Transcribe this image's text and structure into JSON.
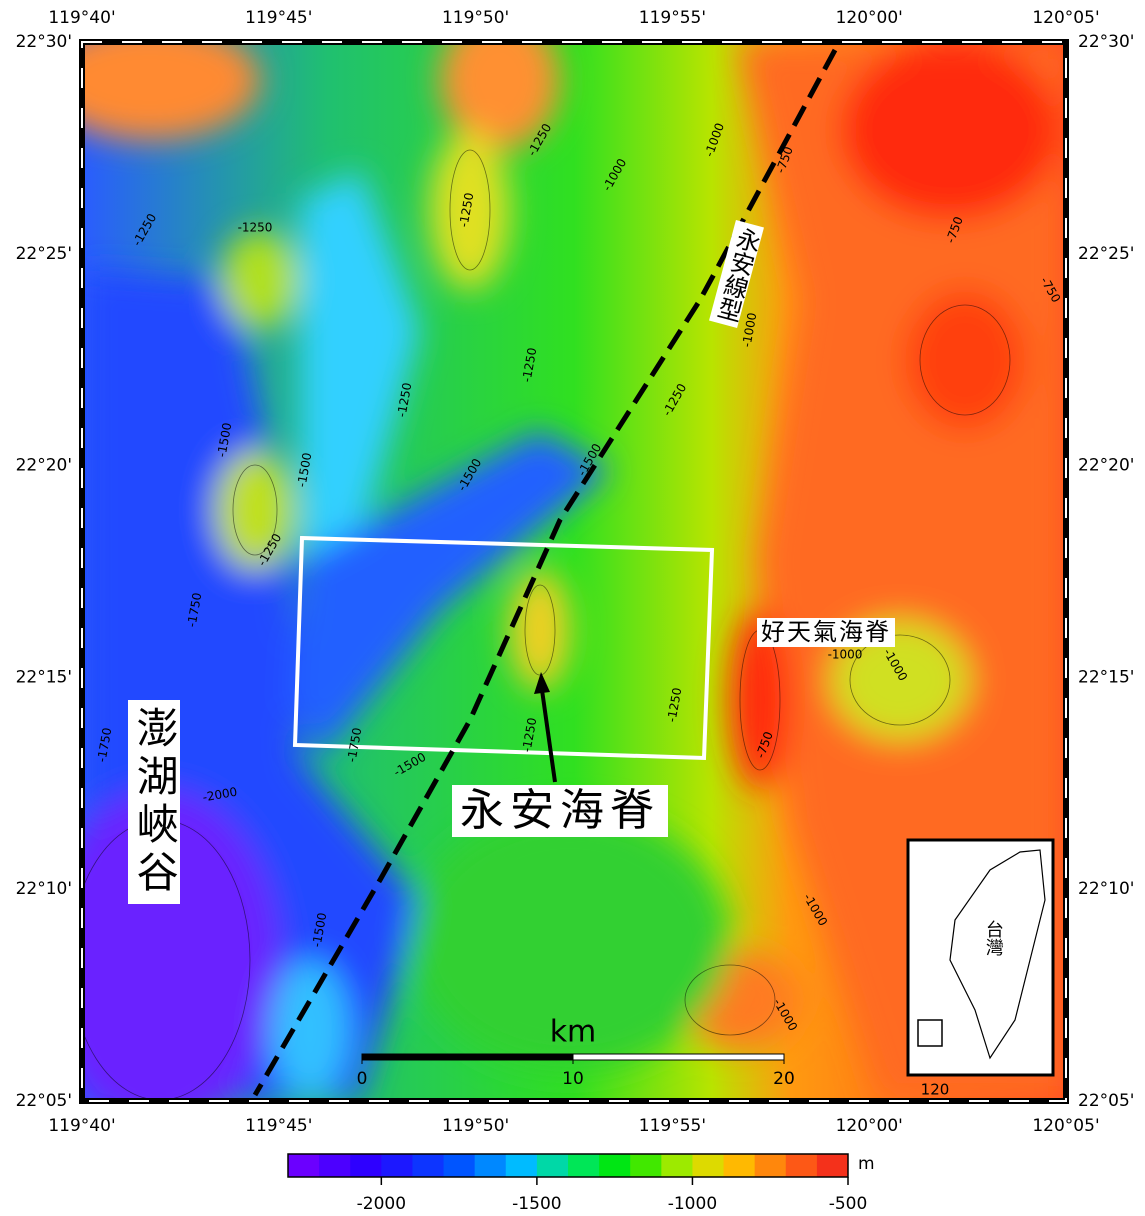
{
  "map": {
    "lon_labels": [
      "119°40'",
      "119°45'",
      "119°50'",
      "119°55'",
      "120°00'",
      "120°05'"
    ],
    "lat_labels": [
      "22°30'",
      "22°25'",
      "22°20'",
      "22°15'",
      "22°10'",
      "22°05'"
    ],
    "annotations": {
      "lineament": "永安線型",
      "ridge_east": "好天氣海脊",
      "ridge": "永安海脊",
      "canyon": "澎湖峽谷"
    },
    "contour_labels": [
      -1250,
      -1250,
      -1250,
      -1000,
      -1250,
      -1000,
      -750,
      -750,
      -750,
      -1000,
      -1250,
      -1250,
      -1250,
      -1500,
      -1500,
      -1500,
      -1500,
      -1250,
      -1750,
      -1000,
      -1000,
      -750,
      -1250,
      -1250,
      -1500,
      -1750,
      -2000,
      -1750,
      -1500,
      -1000,
      -1000
    ],
    "scale_bar": {
      "unit": "km",
      "ticks": [
        0,
        10,
        20
      ]
    },
    "colorbar": {
      "unit": "m",
      "range": [
        -2300,
        -500
      ],
      "ticks": [
        -2000,
        -1500,
        -1000,
        -500
      ]
    },
    "inset": {
      "label": "台灣",
      "tick": 120
    }
  }
}
